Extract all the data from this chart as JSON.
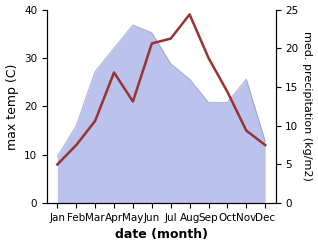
{
  "months": [
    "Jan",
    "Feb",
    "Mar",
    "Apr",
    "May",
    "Jun",
    "Jul",
    "Aug",
    "Sep",
    "Oct",
    "Nov",
    "Dec"
  ],
  "max_temp": [
    8,
    12,
    17,
    27,
    21,
    33,
    34,
    39,
    30,
    23,
    15,
    12
  ],
  "precipitation": [
    6,
    10,
    17,
    20,
    23,
    22,
    18,
    16,
    13,
    13,
    16,
    8
  ],
  "temp_color": "#993333",
  "precip_fill_color": "#b0b8e8",
  "precip_edge_color": "#9099cc",
  "temp_ylim": [
    0,
    40
  ],
  "precip_ylim": [
    0,
    25
  ],
  "temp_yticks": [
    0,
    10,
    20,
    30,
    40
  ],
  "precip_yticks": [
    0,
    5,
    10,
    15,
    20,
    25
  ],
  "xlabel": "date (month)",
  "ylabel_left": "max temp (C)",
  "ylabel_right": "med. precipitation (kg/m2)",
  "background_color": "#ffffff",
  "label_fontsize": 9,
  "tick_fontsize": 7.5
}
